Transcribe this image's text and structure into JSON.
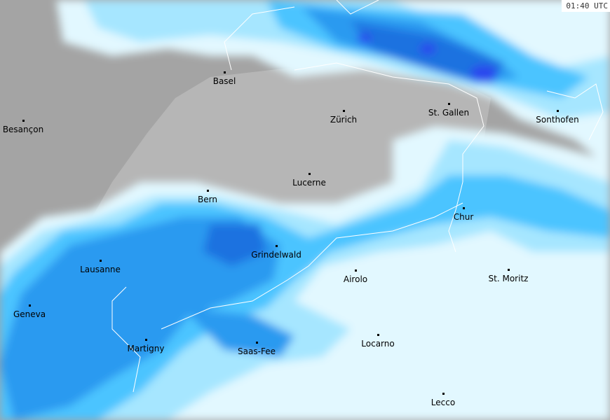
{
  "timestamp": "01:40 UTC",
  "colors": {
    "land_switzerland": "#b6b6b6",
    "land_outside": "#a4a4a4",
    "precip_very_light": "#e2f8ff",
    "precip_light": "#a6e6ff",
    "precip_moderate": "#4cc4ff",
    "precip_heavy": "#2a9af0",
    "precip_very_heavy": "#1f72e0",
    "precip_extreme": "#2c46ee",
    "border": "#ffffff"
  },
  "cities": [
    {
      "name": "Basel"
    },
    {
      "name": "Besançon"
    },
    {
      "name": "Zürich"
    },
    {
      "name": "St. Gallen"
    },
    {
      "name": "Sonthofen"
    },
    {
      "name": "Bern"
    },
    {
      "name": "Lucerne"
    },
    {
      "name": "Chur"
    },
    {
      "name": "Grindelwald"
    },
    {
      "name": "Lausanne"
    },
    {
      "name": "Airolo"
    },
    {
      "name": "St. Moritz"
    },
    {
      "name": "Geneva"
    },
    {
      "name": "Martigny"
    },
    {
      "name": "Saas-Fee"
    },
    {
      "name": "Locarno"
    },
    {
      "name": "Lecco"
    }
  ]
}
